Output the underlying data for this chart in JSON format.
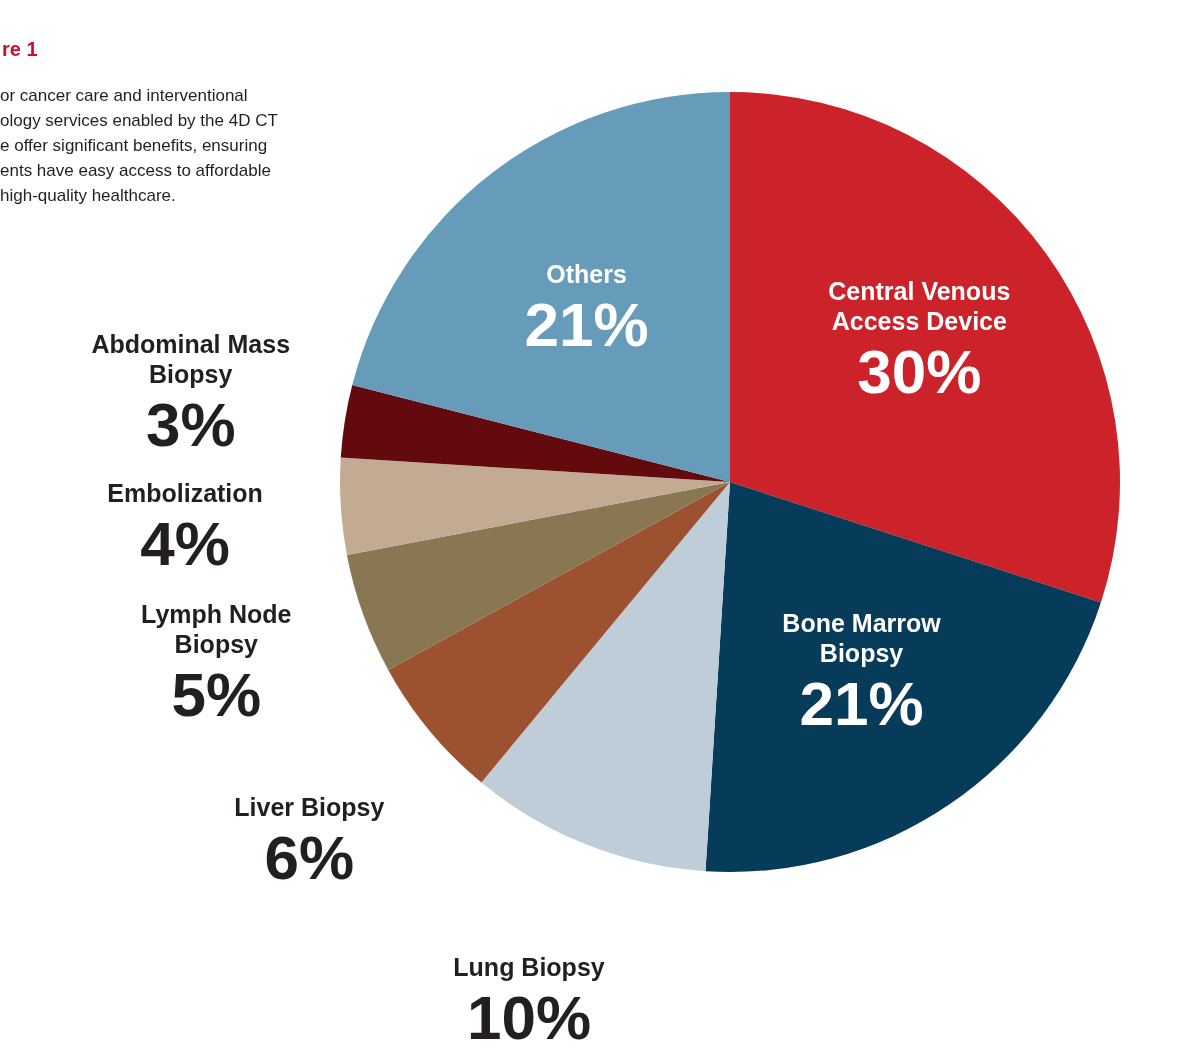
{
  "chart_data": {
    "type": "pie",
    "title": "re 1",
    "annotations": [
      "or cancer care and interventional\nology services enabled by the 4D CT\ne offer significant benefits, ensuring\nents have easy access to affordable\n high-quality healthcare."
    ],
    "categories": [
      "Central Venous Access Device",
      "Bone Marrow Biopsy",
      "Lung Biopsy",
      "Liver Biopsy",
      "Lymph Node Biopsy",
      "Embolization",
      "Abdominal Mass Biopsy",
      "Others"
    ],
    "values": [
      30,
      21,
      10,
      6,
      5,
      4,
      3,
      21
    ],
    "value_labels": [
      "30%",
      "21%",
      "10%",
      "6%",
      "5%",
      "4%",
      "3%",
      "21%"
    ],
    "colors": [
      "#cc2229",
      "#073b5a",
      "#bfcdd8",
      "#9c5230",
      "#887752",
      "#c3ab93",
      "#630a0f",
      "#669cba"
    ]
  }
}
